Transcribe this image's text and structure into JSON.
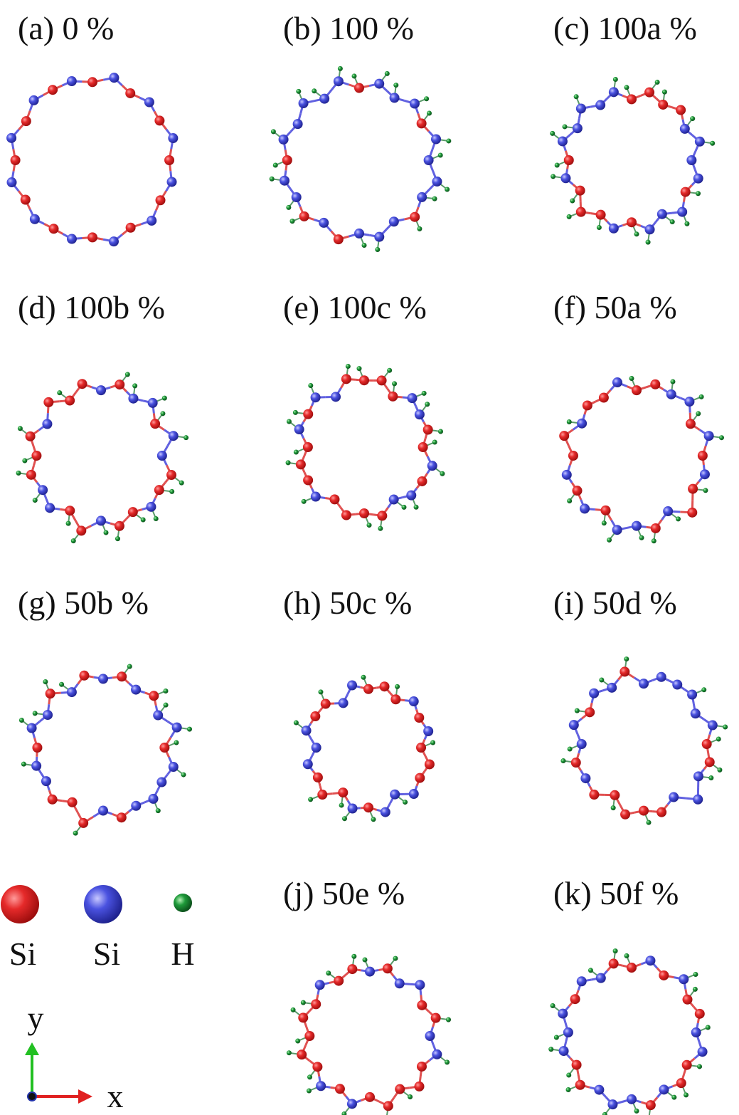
{
  "panels": [
    {
      "label": "(a) 0 %"
    },
    {
      "label": "(b) 100 %"
    },
    {
      "label": "(c) 100a %"
    },
    {
      "label": "(d) 100b %"
    },
    {
      "label": "(e) 100c %"
    },
    {
      "label": "(f) 50a %"
    },
    {
      "label": "(g) 50b %"
    },
    {
      "label": "(h) 50c %"
    },
    {
      "label": "(i) 50d %"
    },
    {
      "label": "(j) 50e %"
    },
    {
      "label": "(k) 50f %"
    }
  ],
  "legend": {
    "items": [
      "Si",
      "Si",
      "H"
    ]
  },
  "axes": {
    "y": "y",
    "x": "x"
  }
}
